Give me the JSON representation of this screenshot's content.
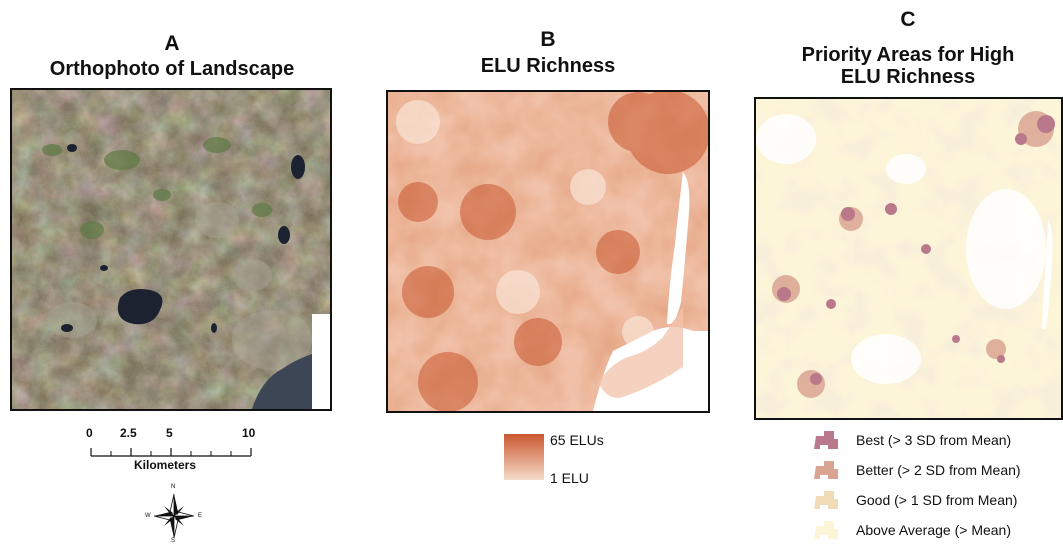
{
  "panel_a": {
    "letter": "A",
    "title": "Orthophoto of Landscape"
  },
  "panel_b": {
    "letter": "B",
    "title": "ELU Richness"
  },
  "panel_c": {
    "letter": "C",
    "title_line1": "Priority Areas for High",
    "title_line2": "ELU Richness"
  },
  "scale_bar": {
    "ticks": [
      "0",
      "2.5",
      "5",
      "10"
    ],
    "unit": "Kilometers"
  },
  "north_arrow": {
    "n": "N",
    "s": "S",
    "e": "E",
    "w": "W"
  },
  "gradient_legend": {
    "max_label": "65 ELUs",
    "min_label": "1 ELU",
    "max_color": "#c9572f",
    "min_color": "#f6dccb"
  },
  "priority_legend": [
    {
      "label": "Best (> 3 SD from Mean)",
      "color": "#b9798a"
    },
    {
      "label": "Better (> 2 SD from Mean)",
      "color": "#d9a492"
    },
    {
      "label": "Good (> 1 SD from Mean)",
      "color": "#efdcb6"
    },
    {
      "label": "Above Average (> Mean)",
      "color": "#fdf5d8"
    }
  ]
}
